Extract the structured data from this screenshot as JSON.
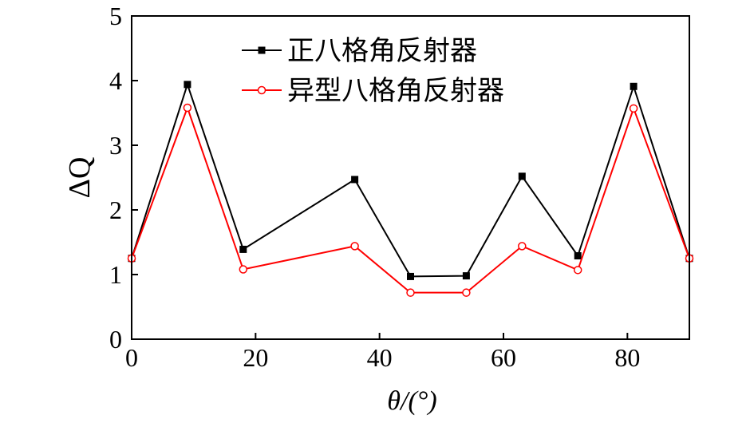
{
  "chart_data": {
    "type": "line",
    "title": "",
    "xlabel": "θ/(°)",
    "ylabel": "ΔQ",
    "xlim": [
      0,
      90
    ],
    "ylim": [
      0,
      5
    ],
    "xticks": [
      0,
      20,
      40,
      60,
      80
    ],
    "yticks": [
      0,
      1,
      2,
      3,
      4,
      5
    ],
    "grid": false,
    "legend_position": "top-center",
    "x": [
      0,
      9,
      18,
      36,
      45,
      54,
      63,
      72,
      81,
      90
    ],
    "series": [
      {
        "name": "正八格角反射器",
        "color": "#000000",
        "marker": "filled-square",
        "values": [
          1.25,
          3.94,
          1.39,
          2.47,
          0.97,
          0.98,
          2.52,
          1.29,
          3.91,
          1.25
        ]
      },
      {
        "name": "异型八格角反射器",
        "color": "#ff0000",
        "marker": "open-circle",
        "values": [
          1.25,
          3.58,
          1.08,
          1.44,
          0.72,
          0.72,
          1.44,
          1.07,
          3.57,
          1.25
        ]
      }
    ]
  }
}
